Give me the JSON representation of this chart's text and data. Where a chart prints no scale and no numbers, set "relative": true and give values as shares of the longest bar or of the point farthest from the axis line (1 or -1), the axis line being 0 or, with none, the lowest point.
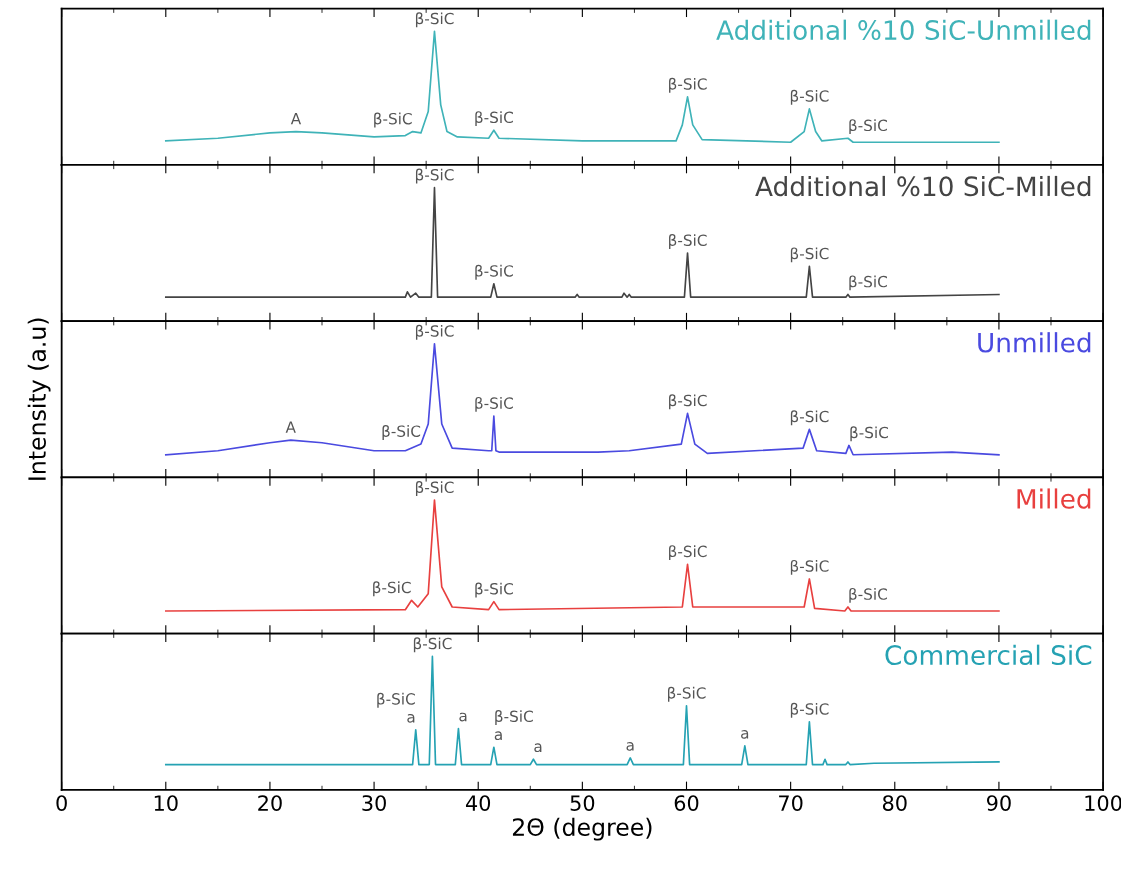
{
  "chart_data": [
    {
      "type": "line",
      "relative": true,
      "xlim": [
        0,
        100
      ],
      "xticks": [
        0,
        10,
        20,
        30,
        40,
        50,
        60,
        70,
        80,
        90,
        100
      ],
      "tick_labels": false,
      "series": [
        {
          "name": "Additional %10 SiC-Unmilled",
          "color": "#3fb3b8",
          "x": [
            10,
            15,
            20,
            22.5,
            25,
            30,
            33,
            33.7,
            34.5,
            35.2,
            35.8,
            36.4,
            37,
            38,
            41,
            41.5,
            42,
            50,
            59,
            59.6,
            60.1,
            60.6,
            61.5,
            70,
            71.3,
            71.8,
            72.4,
            73,
            75.5,
            76,
            90
          ],
          "values": [
            0.18,
            0.2,
            0.24,
            0.25,
            0.24,
            0.21,
            0.22,
            0.25,
            0.24,
            0.4,
            1.0,
            0.45,
            0.25,
            0.21,
            0.2,
            0.26,
            0.2,
            0.18,
            0.18,
            0.3,
            0.51,
            0.3,
            0.19,
            0.17,
            0.25,
            0.42,
            0.25,
            0.18,
            0.2,
            0.17,
            0.17
          ]
        }
      ],
      "annotations": [
        {
          "text": "A",
          "x": 22.5,
          "y": 0.25
        },
        {
          "text": "β-SiC",
          "x": 33.7,
          "y": 0.25
        },
        {
          "text": "β-SiC",
          "x": 35.8,
          "y": 1.0
        },
        {
          "text": "β-SiC",
          "x": 41.5,
          "y": 0.26
        },
        {
          "text": "β-SiC",
          "x": 60.1,
          "y": 0.51
        },
        {
          "text": "β-SiC",
          "x": 71.8,
          "y": 0.42
        },
        {
          "text": "β-SiC",
          "x": 75.5,
          "y": 0.2
        }
      ]
    },
    {
      "type": "line",
      "relative": true,
      "xlim": [
        0,
        100
      ],
      "xticks": [
        0,
        10,
        20,
        30,
        40,
        50,
        60,
        70,
        80,
        90,
        100
      ],
      "tick_labels": false,
      "series": [
        {
          "name": "Additional %10 SiC-Milled",
          "color": "#444444",
          "x": [
            10,
            33,
            33.2,
            33.5,
            34,
            34.3,
            35.5,
            35.8,
            36.1,
            41.2,
            41.5,
            41.8,
            49.3,
            49.5,
            49.7,
            53.8,
            54,
            54.3,
            54.5,
            54.7,
            59.8,
            60.1,
            60.4,
            71.5,
            71.8,
            72.1,
            75.3,
            75.5,
            75.7,
            90
          ],
          "values": [
            0.18,
            0.18,
            0.22,
            0.18,
            0.21,
            0.18,
            0.18,
            1.0,
            0.18,
            0.18,
            0.28,
            0.18,
            0.18,
            0.2,
            0.18,
            0.18,
            0.21,
            0.18,
            0.2,
            0.18,
            0.18,
            0.51,
            0.18,
            0.18,
            0.41,
            0.18,
            0.18,
            0.2,
            0.18,
            0.2
          ]
        }
      ],
      "annotations": [
        {
          "text": "β-SiC",
          "x": 35.8,
          "y": 1.0
        },
        {
          "text": "β-SiC",
          "x": 41.5,
          "y": 0.28
        },
        {
          "text": "β-SiC",
          "x": 60.1,
          "y": 0.51
        },
        {
          "text": "β-SiC",
          "x": 71.8,
          "y": 0.41
        },
        {
          "text": "β-SiC",
          "x": 75.5,
          "y": 0.2
        }
      ]
    },
    {
      "type": "line",
      "relative": true,
      "xlim": [
        0,
        100
      ],
      "xticks": [
        0,
        10,
        20,
        30,
        40,
        50,
        60,
        70,
        80,
        90,
        100
      ],
      "tick_labels": false,
      "ylabel": "Intensity (a.u)",
      "series": [
        {
          "name": "Unmilled",
          "color": "#4a4ae0",
          "x": [
            10,
            15,
            20,
            22,
            25,
            30,
            33,
            34.5,
            35.2,
            35.8,
            36.5,
            37.5,
            41,
            41.3,
            41.5,
            41.7,
            42,
            51.5,
            54.5,
            59.5,
            60.1,
            60.8,
            62,
            71.2,
            71.8,
            72.5,
            75.3,
            75.6,
            76,
            85.5,
            90
          ],
          "values": [
            0.17,
            0.2,
            0.26,
            0.28,
            0.26,
            0.2,
            0.2,
            0.25,
            0.4,
            1.0,
            0.4,
            0.22,
            0.2,
            0.2,
            0.46,
            0.2,
            0.19,
            0.19,
            0.2,
            0.25,
            0.48,
            0.25,
            0.18,
            0.22,
            0.36,
            0.2,
            0.18,
            0.24,
            0.17,
            0.19,
            0.17
          ]
        }
      ],
      "annotations": [
        {
          "text": "A",
          "x": 22,
          "y": 0.28
        },
        {
          "text": "β-SiC",
          "x": 34.5,
          "y": 0.25
        },
        {
          "text": "β-SiC",
          "x": 35.8,
          "y": 1.0
        },
        {
          "text": "β-SiC",
          "x": 41.5,
          "y": 0.46
        },
        {
          "text": "β-SiC",
          "x": 60.1,
          "y": 0.48
        },
        {
          "text": "β-SiC",
          "x": 71.8,
          "y": 0.36
        },
        {
          "text": "β-SiC",
          "x": 75.6,
          "y": 0.24
        }
      ]
    },
    {
      "type": "line",
      "relative": true,
      "xlim": [
        0,
        100
      ],
      "xticks": [
        0,
        10,
        20,
        30,
        40,
        50,
        60,
        70,
        80,
        90,
        100
      ],
      "tick_labels": false,
      "series": [
        {
          "name": "Milled",
          "color": "#e8403f",
          "x": [
            10,
            33,
            33.6,
            34.2,
            35.2,
            35.8,
            36.5,
            37.5,
            41,
            41.5,
            42,
            59.6,
            60.1,
            60.6,
            71.3,
            71.8,
            72.3,
            75.2,
            75.5,
            75.8,
            90
          ],
          "values": [
            0.17,
            0.18,
            0.25,
            0.2,
            0.3,
            1.0,
            0.35,
            0.2,
            0.18,
            0.24,
            0.18,
            0.2,
            0.52,
            0.2,
            0.2,
            0.41,
            0.19,
            0.17,
            0.2,
            0.17,
            0.17
          ]
        }
      ],
      "annotations": [
        {
          "text": "β-SiC",
          "x": 33.6,
          "y": 0.25
        },
        {
          "text": "β-SiC",
          "x": 35.8,
          "y": 1.0
        },
        {
          "text": "β-SiC",
          "x": 41.5,
          "y": 0.24
        },
        {
          "text": "β-SiC",
          "x": 60.1,
          "y": 0.52
        },
        {
          "text": "β-SiC",
          "x": 71.8,
          "y": 0.41
        },
        {
          "text": "β-SiC",
          "x": 75.5,
          "y": 0.2
        }
      ]
    },
    {
      "type": "line",
      "relative": true,
      "xlim": [
        0,
        100
      ],
      "xticks": [
        0,
        10,
        20,
        30,
        40,
        50,
        60,
        70,
        80,
        90,
        100
      ],
      "xlabel": "2Θ (degree)",
      "series": [
        {
          "name": "Commercial SiC",
          "color": "#25a2b3",
          "x": [
            10,
            33.7,
            34,
            34.3,
            35.3,
            35.6,
            35.9,
            37.8,
            38.1,
            38.4,
            41.2,
            41.5,
            41.8,
            45,
            45.3,
            45.6,
            54.3,
            54.6,
            54.9,
            59.7,
            60,
            60.3,
            65.3,
            65.6,
            65.9,
            71.5,
            71.8,
            72.1,
            73.1,
            73.3,
            73.5,
            75.3,
            75.5,
            75.7,
            78,
            90
          ],
          "values": [
            0.19,
            0.19,
            0.45,
            0.19,
            0.19,
            1.0,
            0.19,
            0.19,
            0.46,
            0.19,
            0.19,
            0.32,
            0.19,
            0.19,
            0.23,
            0.19,
            0.19,
            0.24,
            0.19,
            0.19,
            0.63,
            0.19,
            0.19,
            0.33,
            0.19,
            0.19,
            0.51,
            0.19,
            0.19,
            0.23,
            0.19,
            0.19,
            0.21,
            0.19,
            0.2,
            0.21
          ]
        }
      ],
      "annotations": [
        {
          "text": "a",
          "x": 34,
          "y": 0.45
        },
        {
          "text": "β-SiC",
          "x": 34,
          "y": 0.45
        },
        {
          "text": "β-SiC",
          "x": 35.6,
          "y": 1.0
        },
        {
          "text": "a",
          "x": 38.1,
          "y": 0.46
        },
        {
          "text": "a",
          "x": 41.5,
          "y": 0.32
        },
        {
          "text": "β-SiC",
          "x": 41.5,
          "y": 0.32
        },
        {
          "text": "a",
          "x": 45.3,
          "y": 0.23
        },
        {
          "text": "a",
          "x": 54.6,
          "y": 0.24
        },
        {
          "text": "β-SiC",
          "x": 60,
          "y": 0.63
        },
        {
          "text": "a",
          "x": 65.6,
          "y": 0.33
        },
        {
          "text": "β-SiC",
          "x": 71.8,
          "y": 0.51
        }
      ]
    }
  ]
}
